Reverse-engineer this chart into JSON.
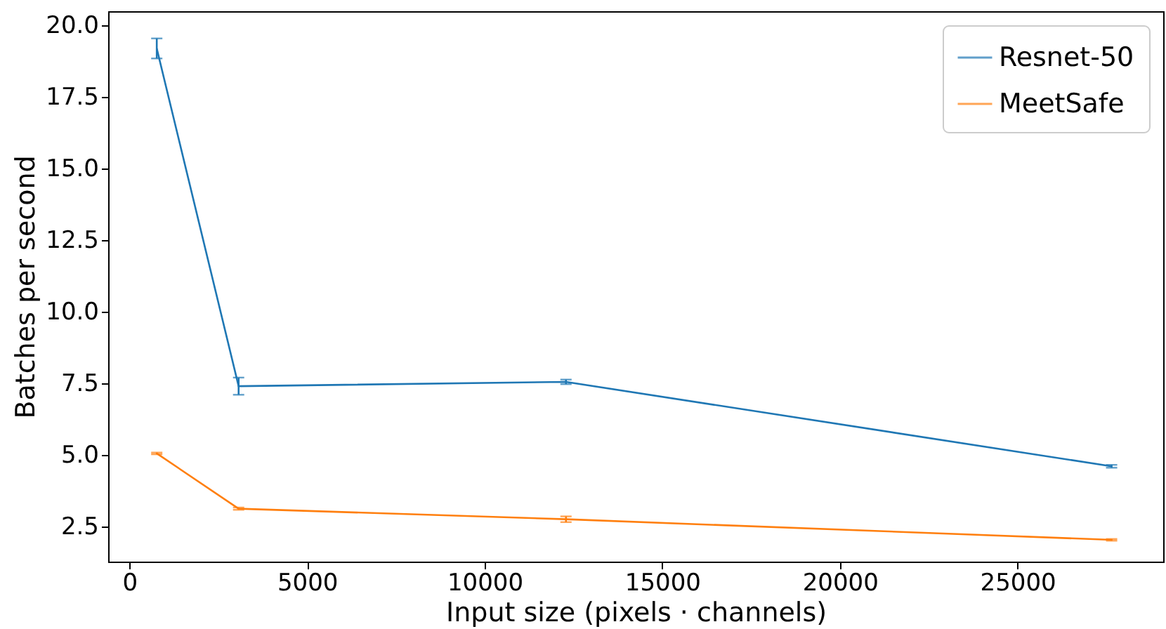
{
  "chart_data": {
    "type": "line",
    "xlabel": "Input size (pixels · channels)",
    "ylabel": "Batches per second",
    "x": [
      768,
      3072,
      12288,
      27648
    ],
    "series": [
      {
        "name": "Resnet-50",
        "color": "#1f77b4",
        "values": [
          19.2,
          7.4,
          7.55,
          4.6
        ],
        "errors": [
          0.35,
          0.3,
          0.08,
          0.05
        ]
      },
      {
        "name": "MeetSafe",
        "color": "#ff7f0e",
        "values": [
          5.05,
          3.12,
          2.75,
          2.03
        ],
        "errors": [
          0.03,
          0.04,
          0.1,
          0.03
        ]
      }
    ],
    "xlim": [
      -600,
      29100
    ],
    "ylim": [
      1.27,
      20.5
    ],
    "xticks": [
      0,
      5000,
      10000,
      15000,
      20000,
      25000
    ],
    "yticks": [
      2.5,
      {
        "value": 5,
        "label": "5.0"
      },
      7.5,
      {
        "value": 10,
        "label": "10.0"
      },
      12.5,
      {
        "value": 15,
        "label": "15.0"
      },
      17.5,
      {
        "value": 20,
        "label": "20.0"
      }
    ],
    "grid": false,
    "legend": "top right",
    "marker": "none",
    "line_style": "solid"
  }
}
